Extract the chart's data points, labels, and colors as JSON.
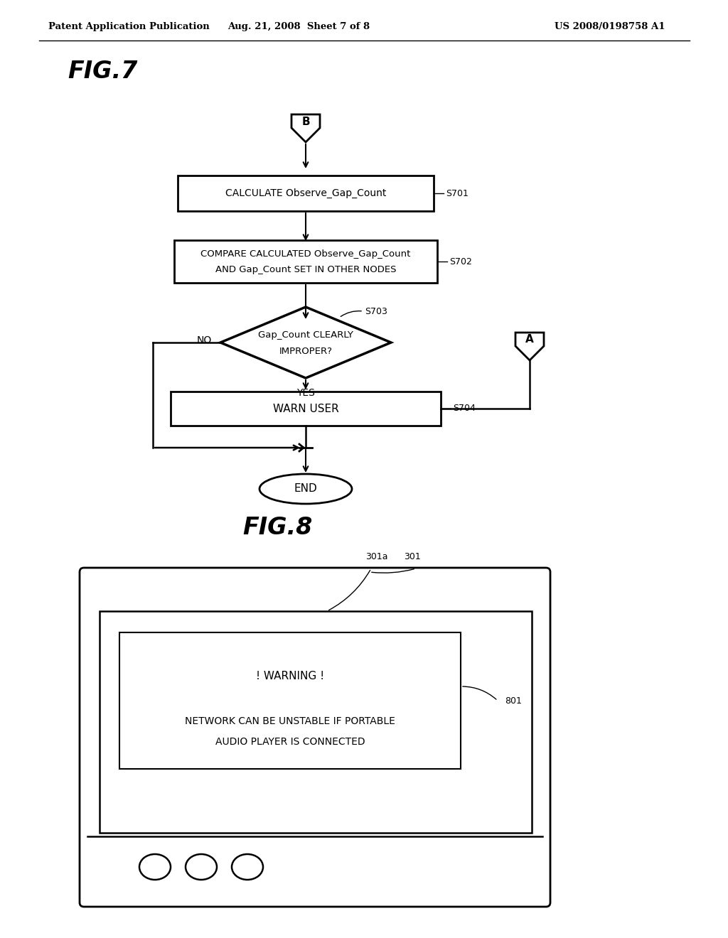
{
  "header_left": "Patent Application Publication",
  "header_mid": "Aug. 21, 2008  Sheet 7 of 8",
  "header_right": "US 2008/0198758 A1",
  "fig7_label": "FIG.7",
  "fig8_label": "FIG.8",
  "connector_B": "B",
  "connector_A": "A",
  "box1_text": "CALCULATE Observe_Gap_Count",
  "box1_label": "S701",
  "box2_line1": "COMPARE CALCULATED Observe_Gap_Count",
  "box2_line2": "AND Gap_Count SET IN OTHER NODES",
  "box2_label": "S702",
  "diamond_line1": "Gap_Count CLEARLY",
  "diamond_line2": "IMPROPER?",
  "diamond_label": "S703",
  "no_label": "NO",
  "yes_label": "YES",
  "box3_text": "WARN USER",
  "box3_label": "S704",
  "end_text": "END",
  "warning_title": "! WARNING !",
  "warning_body1": "NETWORK CAN BE UNSTABLE IF PORTABLE",
  "warning_body2": "AUDIO PLAYER IS CONNECTED",
  "label_301": "301",
  "label_301a": "301a",
  "label_801": "801",
  "bg_color": "#ffffff",
  "line_color": "#000000",
  "text_color": "#000000"
}
